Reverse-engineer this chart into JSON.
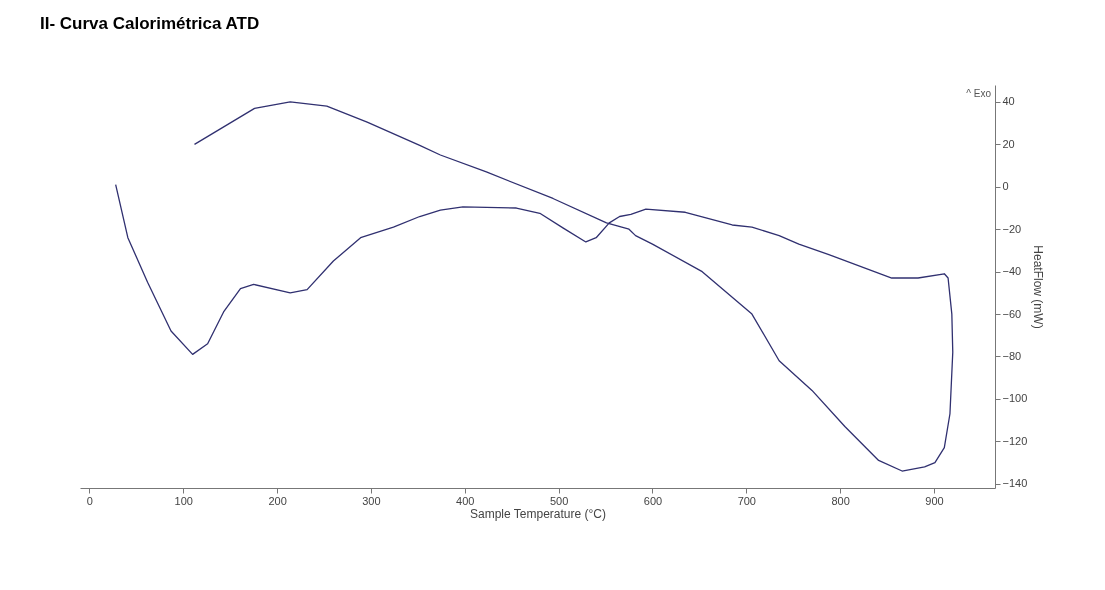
{
  "chart_data": {
    "type": "line",
    "title": "II- Curva Calorimétrica ATD",
    "xlabel": "Sample Temperature (°C)",
    "ylabel": "HeatFlow (mW)",
    "series": [
      {
        "color": "#303070",
        "x": [
          28,
          41,
          62,
          87,
          110,
          126,
          143,
          161,
          175,
          214,
          232,
          260,
          289,
          324,
          352,
          374,
          398,
          455,
          480,
          505,
          529,
          540,
          554,
          565,
          577,
          593,
          635,
          685,
          706,
          735,
          756,
          788,
          855,
          883,
          911,
          915,
          919,
          920,
          917,
          911,
          901,
          890,
          866,
          841,
          805,
          770,
          735,
          706,
          653,
          600,
          582,
          575,
          551,
          494,
          423,
          374,
          352,
          296,
          253,
          214,
          176,
          112
        ],
        "values": [
          1,
          -24,
          -45,
          -68,
          -79,
          -74,
          -59,
          -48,
          -46,
          -50,
          -48.5,
          -35,
          -24,
          -19,
          -14,
          -11,
          -9.5,
          -10,
          -12.5,
          -19.5,
          -26,
          -24,
          -17,
          -14,
          -13,
          -10.5,
          -12,
          -18,
          -19,
          -23,
          -27,
          -32,
          -43,
          -43,
          -41,
          -43,
          -60,
          -78,
          -107,
          -123,
          -130,
          -132,
          -134,
          -129,
          -113,
          -96,
          -82,
          -60,
          -40,
          -27,
          -23,
          -20,
          -17,
          -5.5,
          7,
          15,
          19.5,
          30.5,
          38,
          40,
          37,
          20
        ]
      }
    ],
    "xlim": [
      -10,
      965
    ],
    "ylim": [
      -142,
      48
    ],
    "xticks": [
      0,
      100,
      200,
      300,
      400,
      500,
      600,
      700,
      800,
      900
    ],
    "yticks": [
      -140,
      -120,
      -100,
      -80,
      -60,
      -40,
      -20,
      0,
      20,
      40
    ],
    "annotations": [
      "^  Exo"
    ]
  }
}
